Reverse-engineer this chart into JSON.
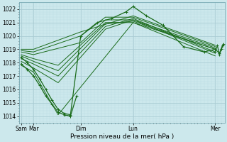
{
  "xlabel": "Pression niveau de la mer( hPa )",
  "ylim": [
    1013.5,
    1022.5
  ],
  "yticks": [
    1014,
    1015,
    1016,
    1017,
    1018,
    1019,
    1020,
    1021,
    1022
  ],
  "bg_color": "#cce8ec",
  "grid_major_color": "#aaccd4",
  "grid_minor_color": "#bbdce4",
  "line_color": "#1a6b1a",
  "xlim": [
    0,
    1.0
  ],
  "x_tick_labels": [
    "Sam",
    "Mar",
    "Dim",
    "Lun",
    "Mer"
  ],
  "x_tick_positions": [
    0.01,
    0.07,
    0.3,
    0.555,
    0.955
  ],
  "series": [
    {
      "x": [
        0.01,
        0.07,
        0.19,
        0.555,
        0.955
      ],
      "y": [
        1017.8,
        1017.3,
        1014.1,
        1021.0,
        1018.5
      ]
    },
    {
      "x": [
        0.01,
        0.07,
        0.19,
        0.42,
        0.555,
        0.955
      ],
      "y": [
        1018.1,
        1017.6,
        1016.5,
        1020.5,
        1021.2,
        1018.7
      ]
    },
    {
      "x": [
        0.01,
        0.07,
        0.19,
        0.42,
        0.555,
        0.955
      ],
      "y": [
        1018.3,
        1017.9,
        1017.0,
        1020.7,
        1021.3,
        1018.8
      ]
    },
    {
      "x": [
        0.01,
        0.07,
        0.19,
        0.42,
        0.555,
        0.955
      ],
      "y": [
        1018.5,
        1018.1,
        1017.4,
        1020.9,
        1021.1,
        1019.0
      ]
    },
    {
      "x": [
        0.01,
        0.07,
        0.19,
        0.42,
        0.555,
        0.955
      ],
      "y": [
        1018.6,
        1018.3,
        1017.8,
        1021.0,
        1021.0,
        1019.0
      ]
    },
    {
      "x": [
        0.01,
        0.07,
        0.3,
        0.42,
        0.555,
        0.955
      ],
      "y": [
        1018.8,
        1018.6,
        1019.5,
        1021.2,
        1021.2,
        1019.1
      ]
    },
    {
      "x": [
        0.01,
        0.07,
        0.3,
        0.42,
        0.555,
        0.955
      ],
      "y": [
        1018.9,
        1018.8,
        1020.0,
        1021.4,
        1021.4,
        1019.2
      ]
    },
    {
      "x": [
        0.01,
        0.07,
        0.3,
        0.555,
        0.955
      ],
      "y": [
        1019.0,
        1019.0,
        1020.3,
        1021.5,
        1019.3
      ]
    }
  ],
  "main_curve": {
    "x": [
      0.01,
      0.04,
      0.07,
      0.1,
      0.13,
      0.16,
      0.19,
      0.22,
      0.25,
      0.3,
      0.38,
      0.45,
      0.52,
      0.555,
      0.62,
      0.7,
      0.8,
      0.9,
      0.955,
      0.975,
      0.99
    ],
    "y": [
      1018.4,
      1018.0,
      1017.5,
      1016.8,
      1016.0,
      1015.2,
      1014.5,
      1014.2,
      1014.1,
      1020.0,
      1021.0,
      1021.3,
      1021.8,
      1022.2,
      1021.5,
      1020.8,
      1019.2,
      1018.8,
      1019.0,
      1018.7,
      1019.3
    ]
  },
  "extra_dip": {
    "x": [
      0.01,
      0.04,
      0.07,
      0.1,
      0.13,
      0.16,
      0.19,
      0.22,
      0.25,
      0.28
    ],
    "y": [
      1017.9,
      1017.5,
      1017.0,
      1016.3,
      1015.5,
      1014.9,
      1014.3,
      1014.1,
      1014.0,
      1015.5
    ]
  },
  "end_wiggle": {
    "x": [
      0.955,
      0.965,
      0.975,
      0.985,
      0.995
    ],
    "y": [
      1018.8,
      1019.3,
      1018.6,
      1019.0,
      1019.4
    ]
  }
}
